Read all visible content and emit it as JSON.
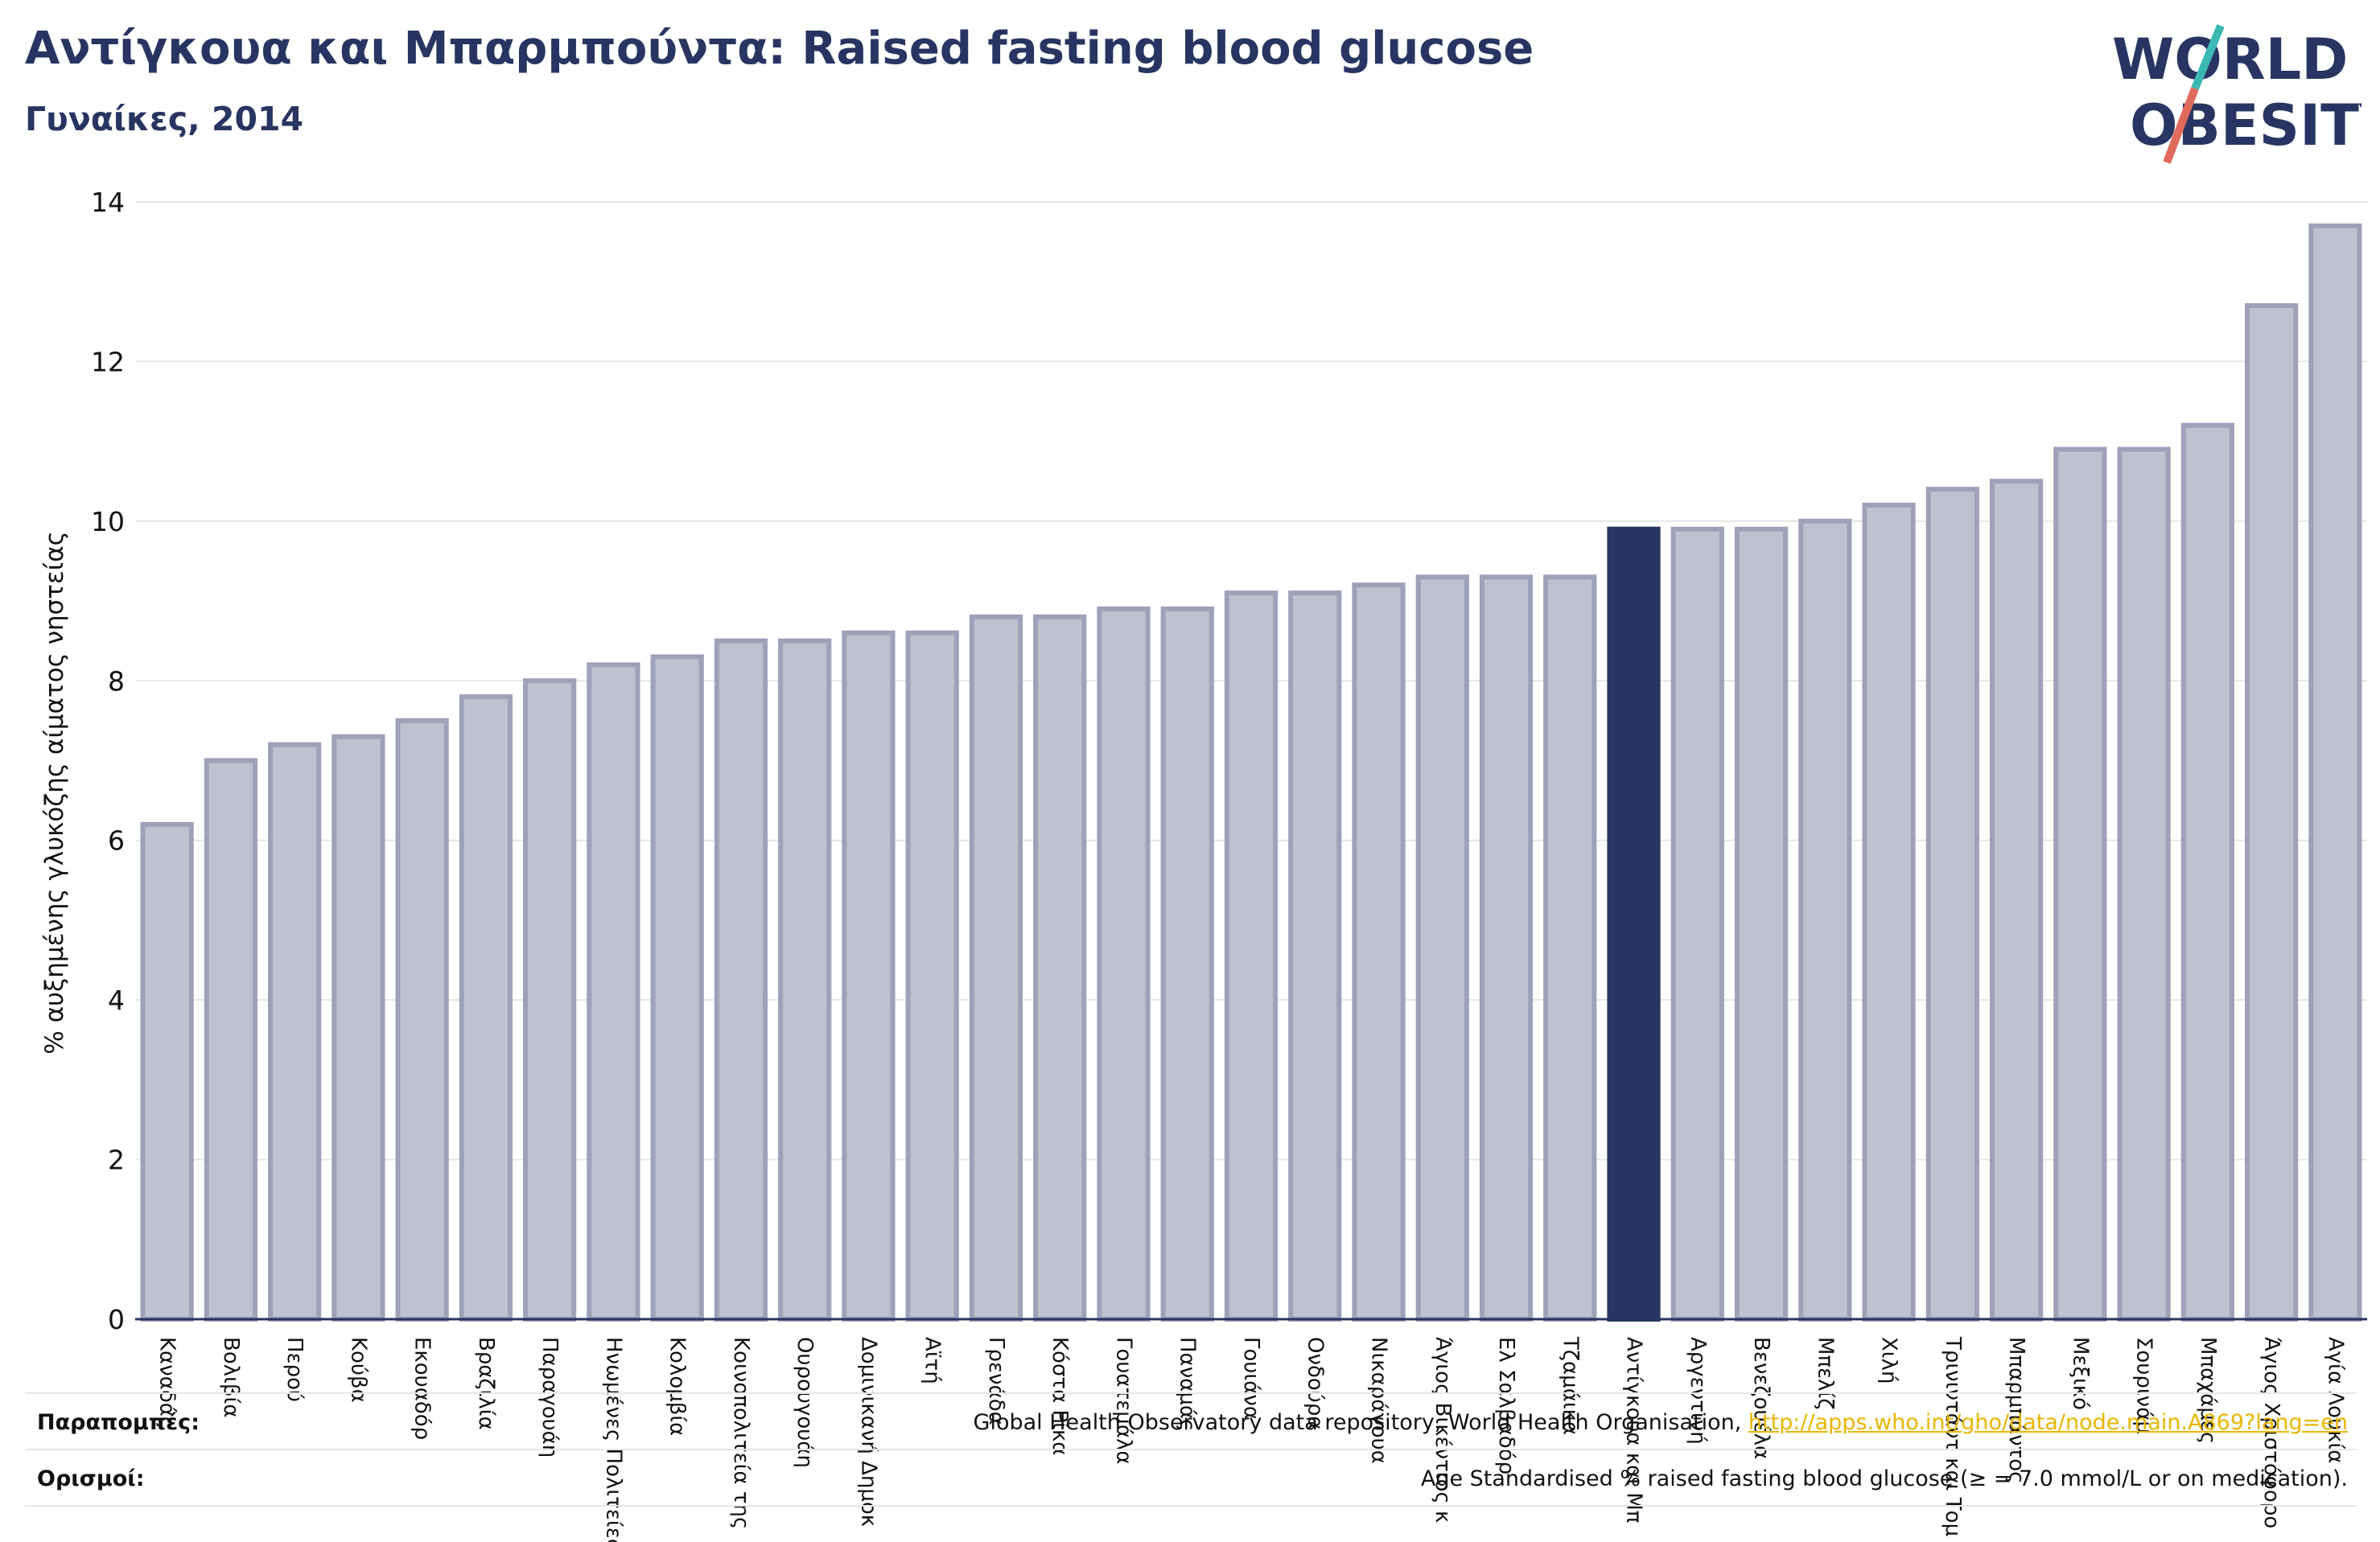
{
  "header": {
    "title": "Αντίγκουα και Μπαρμπούντα: Raised fasting blood glucose",
    "subtitle": "Γυναίκες, 2014"
  },
  "logo": {
    "line1": "WORLD",
    "line2": "OBESITY",
    "colors": {
      "text": "#283562",
      "slash_teal": "#3bb8b4",
      "slash_red": "#e06a5c"
    }
  },
  "colors": {
    "bar_fill": "#bfc1ce",
    "bar_stroke": "#9ea1b8",
    "highlight": "#283562",
    "gridline": "#e6e6e6",
    "axis": "#283562"
  },
  "chart_data": {
    "type": "bar",
    "ylabel": "% αυξημένης γλυκόζης αίματος νηστείας",
    "ylim": [
      0,
      14
    ],
    "yticks": [
      0,
      2,
      4,
      6,
      8,
      10,
      12,
      14
    ],
    "grid": true,
    "highlight_index": 23,
    "categories": [
      "Καναδάς",
      "Βολιβία",
      "Περού",
      "Κούβα",
      "Εκουαδόρ",
      "Βραζιλία",
      "Παραγουάη",
      "Ηνωμένες Πολιτείες",
      "Κολομβία",
      "Κοινοπολιτεία της",
      "Ουρουγουάη",
      "Δομινικανή Δημοκ",
      "Αϊτή",
      "Γρενάδα",
      "Κόστα Ρίκα",
      "Γουατεμάλα",
      "Παναμάς",
      "Γουιάνα",
      "Ονδούρα",
      "Νικαράγουα",
      "Άγιος Βικέντιος κ",
      "Ελ Σαλβαδόρ",
      "Τζαμάικα",
      "Αντίγκουα και Μπ",
      "Αργεντινή",
      "Βενεζουέλα",
      "Μπελίζ",
      "Χιλή",
      "Τρινιντάντ και Τομ",
      "Μπαρμπάντος",
      "Μεξικό",
      "Σουρινάμ",
      "Μπαχάμες",
      "Άγιος Χριστόφορο",
      "Αγία Λουκία"
    ],
    "values": [
      6.2,
      7.0,
      7.2,
      7.3,
      7.5,
      7.8,
      8.0,
      8.2,
      8.3,
      8.5,
      8.5,
      8.6,
      8.6,
      8.8,
      8.8,
      8.9,
      8.9,
      9.1,
      9.1,
      9.2,
      9.3,
      9.3,
      9.3,
      9.9,
      9.9,
      9.9,
      10.0,
      10.2,
      10.4,
      10.5,
      10.9,
      10.9,
      11.2,
      12.7,
      13.7
    ]
  },
  "footer": {
    "notes_label": "Παραπομπές:",
    "notes_text": "Global Health Observatory data repository, World Health Organisation, ",
    "notes_link": "http://apps.who.int/gho/data/node.main.A869?lang=en",
    "definitions_label": "Ορισμοί:",
    "definitions_text": "Age Standardised % raised fasting blood glucose (≥ = 7.0 mmol/L or on medication)."
  }
}
